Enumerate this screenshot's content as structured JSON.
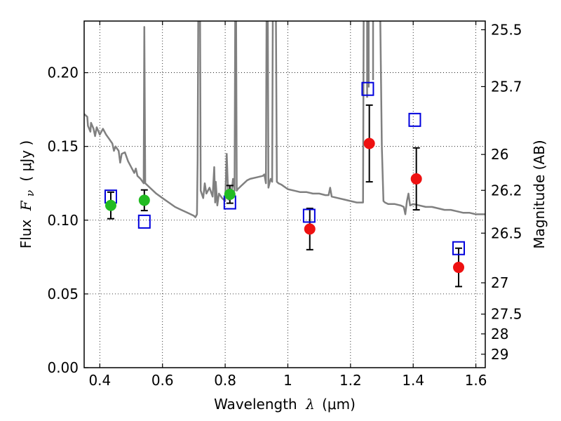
{
  "chart_data": {
    "type": "scatter",
    "xlabel_text": "Wavelength",
    "xlabel_symbol": "λ",
    "xlabel_unit": "(μm)",
    "ylabel_text": "Flux",
    "ylabel_symbol": "F",
    "ylabel_subscript": "ν",
    "ylabel_unit": "( μJy )",
    "y2label": "Magnitude (AB)",
    "xlim": [
      0.35,
      1.63
    ],
    "ylim": [
      0.0,
      0.235
    ],
    "grid": true,
    "colors": {
      "model": "#808080",
      "green_points": "#22bb22",
      "red_points": "#ee1111",
      "model_boxes": "#0000dd",
      "errorbars": "#000000"
    },
    "x_ticks": [
      {
        "value": 0.4,
        "label": "0.4"
      },
      {
        "value": 0.6,
        "label": "0.6"
      },
      {
        "value": 0.8,
        "label": "0.8"
      },
      {
        "value": 1.0,
        "label": "1"
      },
      {
        "value": 1.2,
        "label": "1.2"
      },
      {
        "value": 1.4,
        "label": "1.4"
      },
      {
        "value": 1.6,
        "label": "1.6"
      }
    ],
    "y_ticks": [
      {
        "value": 0.0,
        "label": "0.00"
      },
      {
        "value": 0.05,
        "label": "0.05"
      },
      {
        "value": 0.1,
        "label": "0.10"
      },
      {
        "value": 0.15,
        "label": "0.15"
      },
      {
        "value": 0.2,
        "label": "0.20"
      }
    ],
    "y2_ticks": [
      {
        "value": 25.5,
        "label": "25.5"
      },
      {
        "value": 25.7,
        "label": "25.7"
      },
      {
        "value": 26.0,
        "label": "26"
      },
      {
        "value": 26.2,
        "label": "26.2"
      },
      {
        "value": 26.5,
        "label": "26.5"
      },
      {
        "value": 27.0,
        "label": "27"
      },
      {
        "value": 27.5,
        "label": "27.5"
      },
      {
        "value": 28.0,
        "label": "28"
      },
      {
        "value": 29.0,
        "label": "29"
      }
    ],
    "model_spectrum": [
      [
        0.35,
        0.172
      ],
      [
        0.36,
        0.17
      ],
      [
        0.362,
        0.164
      ],
      [
        0.37,
        0.16
      ],
      [
        0.372,
        0.166
      ],
      [
        0.38,
        0.162
      ],
      [
        0.385,
        0.157
      ],
      [
        0.39,
        0.163
      ],
      [
        0.4,
        0.158
      ],
      [
        0.405,
        0.16
      ],
      [
        0.41,
        0.162
      ],
      [
        0.42,
        0.158
      ],
      [
        0.43,
        0.155
      ],
      [
        0.44,
        0.152
      ],
      [
        0.445,
        0.147
      ],
      [
        0.45,
        0.15
      ],
      [
        0.46,
        0.147
      ],
      [
        0.465,
        0.139
      ],
      [
        0.47,
        0.145
      ],
      [
        0.48,
        0.146
      ],
      [
        0.49,
        0.14
      ],
      [
        0.5,
        0.136
      ],
      [
        0.51,
        0.132
      ],
      [
        0.515,
        0.135
      ],
      [
        0.52,
        0.13
      ],
      [
        0.53,
        0.128
      ],
      [
        0.54,
        0.125
      ],
      [
        0.542,
        0.231
      ],
      [
        0.545,
        0.125
      ],
      [
        0.55,
        0.124
      ],
      [
        0.56,
        0.122
      ],
      [
        0.58,
        0.118
      ],
      [
        0.6,
        0.115
      ],
      [
        0.62,
        0.112
      ],
      [
        0.64,
        0.109
      ],
      [
        0.66,
        0.107
      ],
      [
        0.68,
        0.105
      ],
      [
        0.7,
        0.103
      ],
      [
        0.705,
        0.102
      ],
      [
        0.71,
        0.104
      ],
      [
        0.712,
        0.14
      ],
      [
        0.714,
        0.236
      ],
      [
        0.72,
        0.236
      ],
      [
        0.722,
        0.12
      ],
      [
        0.73,
        0.115
      ],
      [
        0.735,
        0.125
      ],
      [
        0.74,
        0.118
      ],
      [
        0.75,
        0.122
      ],
      [
        0.76,
        0.116
      ],
      [
        0.765,
        0.136
      ],
      [
        0.768,
        0.112
      ],
      [
        0.77,
        0.126
      ],
      [
        0.775,
        0.11
      ],
      [
        0.78,
        0.118
      ],
      [
        0.79,
        0.115
      ],
      [
        0.8,
        0.113
      ],
      [
        0.805,
        0.145
      ],
      [
        0.81,
        0.114
      ],
      [
        0.82,
        0.118
      ],
      [
        0.825,
        0.128
      ],
      [
        0.83,
        0.12
      ],
      [
        0.832,
        0.236
      ],
      [
        0.835,
        0.236
      ],
      [
        0.837,
        0.12
      ],
      [
        0.84,
        0.121
      ],
      [
        0.85,
        0.123
      ],
      [
        0.86,
        0.125
      ],
      [
        0.87,
        0.127
      ],
      [
        0.88,
        0.128
      ],
      [
        0.9,
        0.129
      ],
      [
        0.92,
        0.13
      ],
      [
        0.925,
        0.131
      ],
      [
        0.93,
        0.125
      ],
      [
        0.932,
        0.236
      ],
      [
        0.936,
        0.236
      ],
      [
        0.938,
        0.122
      ],
      [
        0.945,
        0.128
      ],
      [
        0.95,
        0.126
      ],
      [
        0.952,
        0.236
      ],
      [
        0.955,
        0.236
      ],
      [
        0.958,
        0.236
      ],
      [
        0.96,
        0.236
      ],
      [
        0.962,
        0.236
      ],
      [
        0.965,
        0.126
      ],
      [
        0.97,
        0.125
      ],
      [
        0.98,
        0.124
      ],
      [
        1.0,
        0.121
      ],
      [
        1.02,
        0.12
      ],
      [
        1.04,
        0.119
      ],
      [
        1.06,
        0.119
      ],
      [
        1.08,
        0.118
      ],
      [
        1.1,
        0.118
      ],
      [
        1.12,
        0.117
      ],
      [
        1.13,
        0.117
      ],
      [
        1.135,
        0.122
      ],
      [
        1.14,
        0.116
      ],
      [
        1.16,
        0.115
      ],
      [
        1.18,
        0.114
      ],
      [
        1.2,
        0.113
      ],
      [
        1.22,
        0.112
      ],
      [
        1.24,
        0.112
      ],
      [
        1.242,
        0.236
      ],
      [
        1.262,
        0.236
      ],
      [
        1.265,
        0.236
      ],
      [
        1.27,
        0.236
      ],
      [
        1.275,
        0.236
      ],
      [
        1.28,
        0.236
      ],
      [
        1.29,
        0.236
      ],
      [
        1.295,
        0.236
      ],
      [
        1.3,
        0.15
      ],
      [
        1.305,
        0.113
      ],
      [
        1.31,
        0.112
      ],
      [
        1.32,
        0.111
      ],
      [
        1.34,
        0.111
      ],
      [
        1.36,
        0.11
      ],
      [
        1.37,
        0.109
      ],
      [
        1.375,
        0.104
      ],
      [
        1.38,
        0.113
      ],
      [
        1.385,
        0.118
      ],
      [
        1.39,
        0.11
      ],
      [
        1.4,
        0.111
      ],
      [
        1.42,
        0.11
      ],
      [
        1.44,
        0.109
      ],
      [
        1.46,
        0.109
      ],
      [
        1.48,
        0.108
      ],
      [
        1.5,
        0.107
      ],
      [
        1.52,
        0.107
      ],
      [
        1.54,
        0.106
      ],
      [
        1.56,
        0.105
      ],
      [
        1.58,
        0.105
      ],
      [
        1.6,
        0.104
      ],
      [
        1.62,
        0.104
      ],
      [
        1.63,
        0.104
      ]
    ],
    "spectrum_notches": [
      {
        "x": 1.253,
        "y": 0.183
      },
      {
        "x": 1.258,
        "y": 0.19
      },
      {
        "x": 1.272,
        "y": 0.195
      }
    ],
    "observed_green": [
      {
        "x": 0.435,
        "y": 0.11,
        "err": 0.009
      },
      {
        "x": 0.542,
        "y": 0.1135,
        "err": 0.007
      },
      {
        "x": 0.815,
        "y": 0.1175,
        "err": 0.006
      }
    ],
    "observed_red": [
      {
        "x": 1.07,
        "y": 0.094,
        "err": 0.014
      },
      {
        "x": 1.26,
        "y": 0.152,
        "err": 0.026
      },
      {
        "x": 1.41,
        "y": 0.128,
        "err": 0.021
      },
      {
        "x": 1.545,
        "y": 0.068,
        "err": 0.013
      }
    ],
    "model_boxes": [
      {
        "x": 0.435,
        "y": 0.116
      },
      {
        "x": 0.542,
        "y": 0.099
      },
      {
        "x": 0.815,
        "y": 0.112
      },
      {
        "x": 1.068,
        "y": 0.103
      },
      {
        "x": 1.255,
        "y": 0.189
      },
      {
        "x": 1.405,
        "y": 0.168
      },
      {
        "x": 1.545,
        "y": 0.081
      }
    ]
  }
}
